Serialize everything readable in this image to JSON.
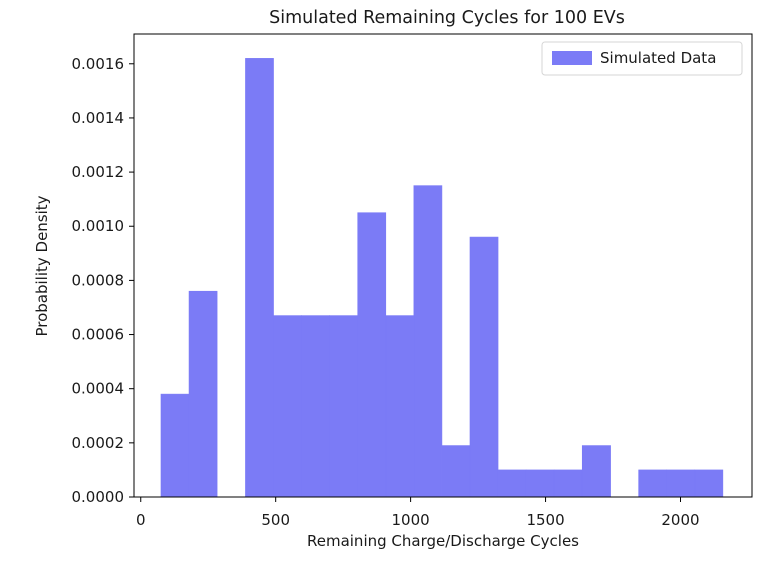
{
  "chart_data": {
    "type": "bar",
    "subtype": "histogram",
    "title": "Simulated Remaining Cycles for 100 EVs",
    "xlabel": "Remaining Charge/Discharge Cycles",
    "ylabel": "Probability Density",
    "xlim": [
      -25,
      2265
    ],
    "ylim": [
      0,
      0.00171
    ],
    "xticks": [
      0,
      500,
      1000,
      1500,
      2000
    ],
    "xtick_labels": [
      "0",
      "500",
      "1000",
      "1500",
      "2000"
    ],
    "yticks": [
      0,
      0.0002,
      0.0004,
      0.0006,
      0.0008,
      0.001,
      0.0012,
      0.0014,
      0.0016
    ],
    "ytick_labels": [
      "0.0000",
      "0.0002",
      "0.0004",
      "0.0006",
      "0.0008",
      "0.0010",
      "0.0012",
      "0.0014",
      "0.0016"
    ],
    "grid": false,
    "legend_position": "top-right",
    "series": [
      {
        "name": "Simulated Data",
        "color": "#7b7bf6",
        "bin_edges": [
          75,
          179,
          283,
          388,
          492,
          596,
          700,
          804,
          908,
          1012,
          1116,
          1220,
          1324,
          1428,
          1532,
          1636,
          1741,
          1845,
          1949,
          2053,
          2157
        ],
        "values": [
          0.00038,
          0.00076,
          0,
          0.00162,
          0.00067,
          0.00067,
          0.00067,
          0.00105,
          0.00067,
          0.00115,
          0.00019,
          0.00096,
          0.0001,
          0.0001,
          0.0001,
          0.00019,
          0,
          0.0001,
          0.0001,
          0.0001
        ]
      }
    ]
  }
}
